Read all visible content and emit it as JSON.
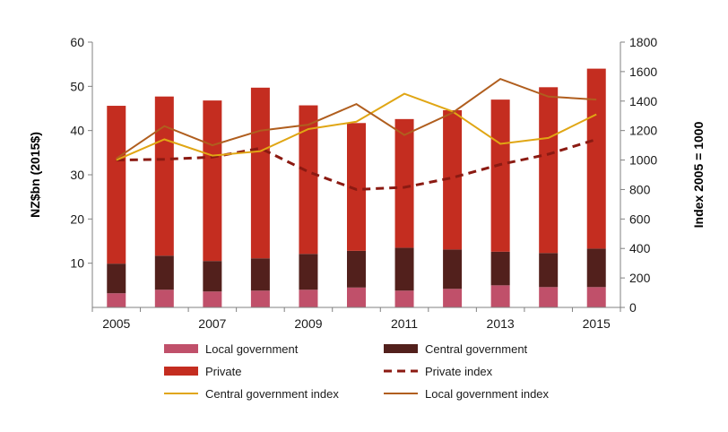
{
  "chart_data": {
    "type": "bar",
    "stacked": true,
    "x_tick_labels": [
      "2005",
      "2007",
      "2009",
      "2011",
      "2013",
      "2015"
    ],
    "categories": [
      "2005",
      "2006",
      "2007",
      "2008",
      "2009",
      "2010",
      "2011",
      "2012",
      "2013",
      "2014",
      "2015"
    ],
    "ylabel_left": "NZ$bn (2015$)",
    "ylabel_right": "Index 2005 = 1000",
    "ylim_left": [
      0,
      60
    ],
    "yticks_left": [
      10,
      20,
      30,
      40,
      50,
      60
    ],
    "ylim_right": [
      0,
      1800
    ],
    "yticks_right": [
      0,
      200,
      400,
      600,
      800,
      1000,
      1200,
      1400,
      1600,
      1800
    ],
    "grid": false,
    "legend_position": "bottom",
    "series": [
      {
        "name": "Local government",
        "kind": "bar",
        "axis": "left",
        "color": "#c0506a",
        "values": [
          3.2,
          4.0,
          3.6,
          3.8,
          4.0,
          4.5,
          3.8,
          4.2,
          5.0,
          4.6,
          4.6
        ]
      },
      {
        "name": "Central government",
        "kind": "bar",
        "axis": "left",
        "color": "#52201c",
        "values": [
          6.7,
          7.7,
          6.9,
          7.3,
          8.1,
          8.3,
          9.7,
          8.9,
          7.6,
          7.7,
          8.7
        ]
      },
      {
        "name": "Private",
        "kind": "bar",
        "axis": "left",
        "color": "#c42d20",
        "values": [
          35.7,
          36.0,
          36.3,
          38.6,
          33.6,
          28.9,
          29.1,
          31.5,
          34.4,
          37.5,
          40.7
        ]
      },
      {
        "name": "Private index",
        "kind": "line",
        "axis": "right",
        "color": "#8b1a12",
        "dash": true,
        "values": [
          1000,
          1005,
          1020,
          1080,
          920,
          800,
          815,
          880,
          970,
          1040,
          1140
        ]
      },
      {
        "name": "Central government index",
        "kind": "line",
        "axis": "right",
        "color": "#e0a614",
        "values": [
          1000,
          1140,
          1030,
          1060,
          1210,
          1260,
          1450,
          1330,
          1110,
          1150,
          1310
        ]
      },
      {
        "name": "Local government index",
        "kind": "line",
        "axis": "right",
        "color": "#b05e1e",
        "values": [
          1010,
          1230,
          1100,
          1200,
          1240,
          1380,
          1170,
          1320,
          1550,
          1430,
          1410
        ]
      }
    ]
  }
}
